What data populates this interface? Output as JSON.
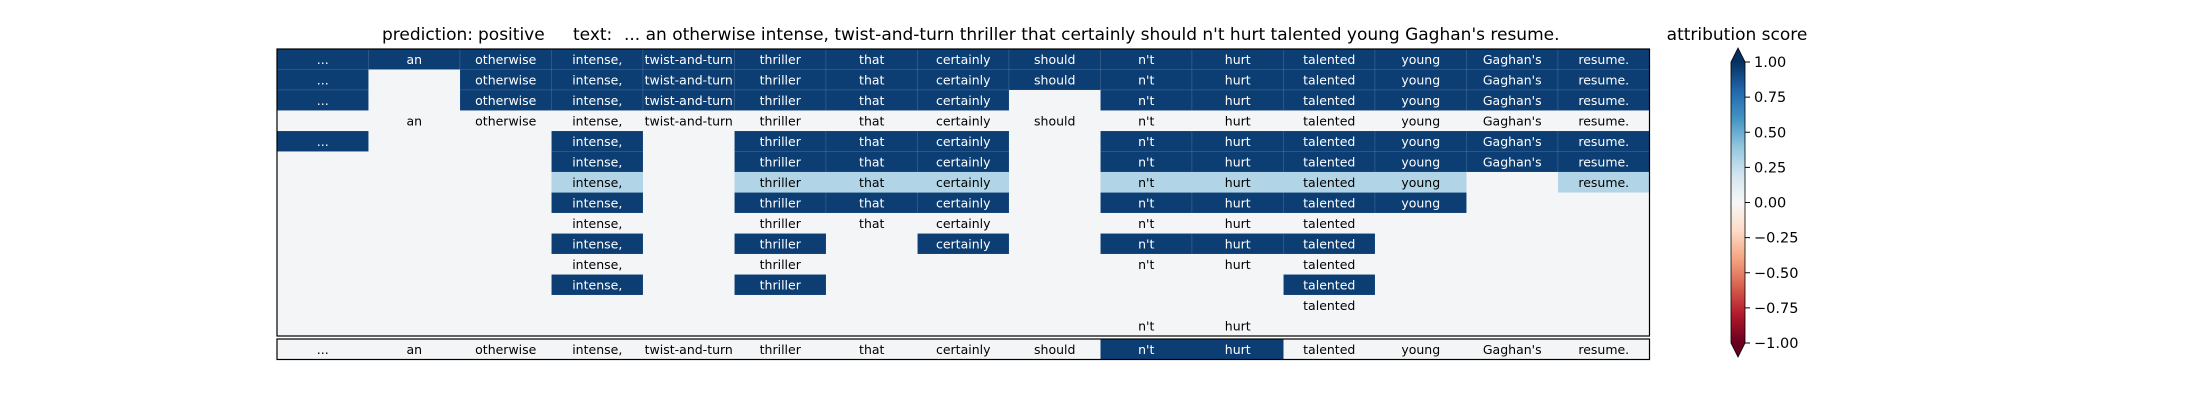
{
  "chart_data": {
    "type": "heatmap",
    "title": {
      "prediction_label": "prediction:",
      "prediction_value": "positive",
      "text_label": "text:",
      "text_value": "... an otherwise intense, twist-and-turn thriller that certainly should n't hurt talented young Gaghan's resume."
    },
    "tokens": [
      "...",
      "an",
      "otherwise",
      "intense,",
      "twist-and-turn",
      "thriller",
      "that",
      "certainly",
      "should",
      "n't",
      "hurt",
      "talented",
      "young",
      "Gaghan's",
      "resume."
    ],
    "rows": [
      {
        "cells": [
          [
            0,
            0.95
          ],
          [
            1,
            0.95
          ],
          [
            2,
            0.95
          ],
          [
            3,
            0.95
          ],
          [
            4,
            0.95
          ],
          [
            5,
            0.95
          ],
          [
            6,
            0.95
          ],
          [
            7,
            0.95
          ],
          [
            8,
            0.95
          ],
          [
            9,
            0.95
          ],
          [
            10,
            0.95
          ],
          [
            11,
            0.95
          ],
          [
            12,
            0.95
          ],
          [
            13,
            0.95
          ],
          [
            14,
            0.95
          ]
        ]
      },
      {
        "cells": [
          [
            0,
            0.95
          ],
          [
            1,
            0.02
          ],
          [
            2,
            0.95
          ],
          [
            3,
            0.95
          ],
          [
            4,
            0.95
          ],
          [
            5,
            0.95
          ],
          [
            6,
            0.95
          ],
          [
            7,
            0.95
          ],
          [
            8,
            0.95
          ],
          [
            9,
            0.95
          ],
          [
            10,
            0.95
          ],
          [
            11,
            0.95
          ],
          [
            12,
            0.95
          ],
          [
            13,
            0.95
          ],
          [
            14,
            0.95
          ]
        ]
      },
      {
        "cells": [
          [
            0,
            0.95
          ],
          [
            1,
            0.02
          ],
          [
            2,
            0.95
          ],
          [
            3,
            0.95
          ],
          [
            4,
            0.95
          ],
          [
            5,
            0.95
          ],
          [
            6,
            0.95
          ],
          [
            7,
            0.95
          ],
          [
            8,
            0.02
          ],
          [
            9,
            0.95
          ],
          [
            10,
            0.95
          ],
          [
            11,
            0.95
          ],
          [
            12,
            0.95
          ],
          [
            13,
            0.95
          ],
          [
            14,
            0.95
          ]
        ]
      },
      {
        "cells": [
          [
            0,
            0.02
          ],
          [
            1,
            0.02
          ],
          [
            2,
            0.02
          ],
          [
            3,
            0.02
          ],
          [
            4,
            0.02
          ],
          [
            5,
            0.02
          ],
          [
            6,
            0.02
          ],
          [
            7,
            0.02
          ],
          [
            8,
            0.02
          ],
          [
            9,
            0.02
          ],
          [
            10,
            0.02
          ],
          [
            11,
            0.02
          ],
          [
            12,
            0.02
          ],
          [
            13,
            0.02
          ],
          [
            14,
            0.02
          ]
        ]
      },
      {
        "cells": [
          [
            0,
            0.95
          ],
          [
            1,
            0.02
          ],
          [
            2,
            0.02
          ],
          [
            3,
            0.95
          ],
          [
            4,
            0.02
          ],
          [
            5,
            0.95
          ],
          [
            6,
            0.95
          ],
          [
            7,
            0.95
          ],
          [
            8,
            0.02
          ],
          [
            9,
            0.95
          ],
          [
            10,
            0.95
          ],
          [
            11,
            0.95
          ],
          [
            12,
            0.95
          ],
          [
            13,
            0.95
          ],
          [
            14,
            0.95
          ]
        ]
      },
      {
        "cells": [
          [
            0,
            0.02
          ],
          [
            1,
            0.02
          ],
          [
            2,
            0.02
          ],
          [
            3,
            0.95
          ],
          [
            4,
            0.02
          ],
          [
            5,
            0.95
          ],
          [
            6,
            0.95
          ],
          [
            7,
            0.95
          ],
          [
            8,
            0.02
          ],
          [
            9,
            0.95
          ],
          [
            10,
            0.95
          ],
          [
            11,
            0.95
          ],
          [
            12,
            0.95
          ],
          [
            13,
            0.95
          ],
          [
            14,
            0.95
          ]
        ]
      },
      {
        "cells": [
          [
            0,
            0.02
          ],
          [
            1,
            0.02
          ],
          [
            2,
            0.02
          ],
          [
            3,
            0.3
          ],
          [
            4,
            0.02
          ],
          [
            5,
            0.3
          ],
          [
            6,
            0.3
          ],
          [
            7,
            0.3
          ],
          [
            8,
            0.02
          ],
          [
            9,
            0.3
          ],
          [
            10,
            0.3
          ],
          [
            11,
            0.3
          ],
          [
            12,
            0.3
          ],
          [
            13,
            0.02
          ],
          [
            14,
            0.3
          ]
        ]
      },
      {
        "cells": [
          [
            0,
            0.02
          ],
          [
            1,
            0.02
          ],
          [
            2,
            0.02
          ],
          [
            3,
            0.95
          ],
          [
            4,
            0.02
          ],
          [
            5,
            0.95
          ],
          [
            6,
            0.95
          ],
          [
            7,
            0.95
          ],
          [
            8,
            0.02
          ],
          [
            9,
            0.95
          ],
          [
            10,
            0.95
          ],
          [
            11,
            0.95
          ],
          [
            12,
            0.95
          ],
          [
            13,
            0.02
          ],
          [
            14,
            0.02
          ]
        ]
      },
      {
        "cells": [
          [
            0,
            0.02
          ],
          [
            1,
            0.02
          ],
          [
            2,
            0.02
          ],
          [
            3,
            0.02
          ],
          [
            4,
            0.02
          ],
          [
            5,
            0.02
          ],
          [
            6,
            0.02
          ],
          [
            7,
            0.02
          ],
          [
            8,
            0.02
          ],
          [
            9,
            0.02
          ],
          [
            10,
            0.02
          ],
          [
            11,
            0.02
          ],
          [
            12,
            0.02
          ],
          [
            13,
            0.02
          ],
          [
            14,
            0.02
          ]
        ]
      },
      {
        "cells": [
          [
            0,
            0.02
          ],
          [
            1,
            0.02
          ],
          [
            2,
            0.02
          ],
          [
            3,
            0.95
          ],
          [
            4,
            0.02
          ],
          [
            5,
            0.95
          ],
          [
            6,
            0.02
          ],
          [
            7,
            0.95
          ],
          [
            8,
            0.02
          ],
          [
            9,
            0.95
          ],
          [
            10,
            0.95
          ],
          [
            11,
            0.95
          ],
          [
            12,
            0.02
          ],
          [
            13,
            0.02
          ],
          [
            14,
            0.02
          ]
        ]
      },
      {
        "cells": [
          [
            0,
            0.02
          ],
          [
            1,
            0.02
          ],
          [
            2,
            0.02
          ],
          [
            3,
            0.02
          ],
          [
            4,
            0.02
          ],
          [
            5,
            0.02
          ],
          [
            6,
            0.02
          ],
          [
            7,
            0.02
          ],
          [
            8,
            0.02
          ],
          [
            9,
            0.02
          ],
          [
            10,
            0.02
          ],
          [
            11,
            0.02
          ],
          [
            12,
            0.02
          ],
          [
            13,
            0.02
          ],
          [
            14,
            0.02
          ]
        ]
      },
      {
        "cells": [
          [
            0,
            0.02
          ],
          [
            1,
            0.02
          ],
          [
            2,
            0.02
          ],
          [
            3,
            0.95
          ],
          [
            4,
            0.02
          ],
          [
            5,
            0.95
          ],
          [
            6,
            0.02
          ],
          [
            7,
            0.02
          ],
          [
            8,
            0.02
          ],
          [
            9,
            0.02
          ],
          [
            10,
            0.02
          ],
          [
            11,
            0.95
          ],
          [
            12,
            0.02
          ],
          [
            13,
            0.02
          ],
          [
            14,
            0.02
          ]
        ]
      },
      {
        "cells": [
          [
            0,
            0.02
          ],
          [
            1,
            0.02
          ],
          [
            2,
            0.02
          ],
          [
            3,
            0.02
          ],
          [
            4,
            0.02
          ],
          [
            5,
            0.02
          ],
          [
            6,
            0.02
          ],
          [
            7,
            0.02
          ],
          [
            8,
            0.02
          ],
          [
            9,
            0.02
          ],
          [
            10,
            0.02
          ],
          [
            11,
            0.02
          ],
          [
            12,
            0.02
          ],
          [
            13,
            0.02
          ],
          [
            14,
            0.02
          ]
        ]
      },
      {
        "cells": [
          [
            0,
            0.02
          ],
          [
            1,
            0.02
          ],
          [
            2,
            0.02
          ],
          [
            3,
            0.02
          ],
          [
            4,
            0.02
          ],
          [
            5,
            0.02
          ],
          [
            6,
            0.02
          ],
          [
            7,
            0.02
          ],
          [
            8,
            0.02
          ],
          [
            9,
            0.02
          ],
          [
            10,
            0.02
          ],
          [
            11,
            0.02
          ],
          [
            12,
            0.02
          ],
          [
            13,
            0.02
          ],
          [
            14,
            0.02
          ]
        ]
      }
    ],
    "labels_hidden": {
      "1": [
        1
      ],
      "2": [
        1,
        8
      ],
      "3": [
        0
      ],
      "4": [
        1,
        2,
        4,
        8
      ],
      "5": [
        0,
        1,
        2,
        4,
        8
      ],
      "6": [
        0,
        1,
        2,
        4,
        8,
        13
      ],
      "7": [
        0,
        1,
        2,
        4,
        8,
        13,
        14
      ],
      "8": [
        0,
        1,
        2,
        4,
        8,
        12,
        13,
        14
      ],
      "9": [
        0,
        1,
        2,
        4,
        6,
        8,
        12,
        13,
        14
      ],
      "10": [
        0,
        1,
        2,
        4,
        6,
        7,
        8,
        12,
        13,
        14
      ],
      "11": [
        0,
        1,
        2,
        4,
        6,
        7,
        8,
        9,
        10,
        12,
        13,
        14
      ],
      "12": [
        0,
        1,
        2,
        3,
        4,
        5,
        6,
        7,
        8,
        9,
        10,
        12,
        13,
        14
      ],
      "13": [
        0,
        1,
        2,
        3,
        4,
        5,
        6,
        7,
        8,
        11,
        12,
        13,
        14
      ]
    },
    "summary_row": [
      0.02,
      0.02,
      0.02,
      0.02,
      0.02,
      0.02,
      0.02,
      0.02,
      0.02,
      0.95,
      0.95,
      0.02,
      0.02,
      0.02,
      0.02
    ],
    "colorbar": {
      "title": "attribution score",
      "range": [
        -1.0,
        1.0
      ],
      "ticks": [
        "1.00",
        "0.75",
        "0.50",
        "0.25",
        "0.00",
        "−0.25",
        "−0.50",
        "−0.75",
        "−1.00"
      ],
      "tick_values": [
        1.0,
        0.75,
        0.5,
        0.25,
        0.0,
        -0.25,
        -0.5,
        -0.75,
        -1.0
      ],
      "colormap": "RdBu",
      "extend": "both"
    }
  }
}
